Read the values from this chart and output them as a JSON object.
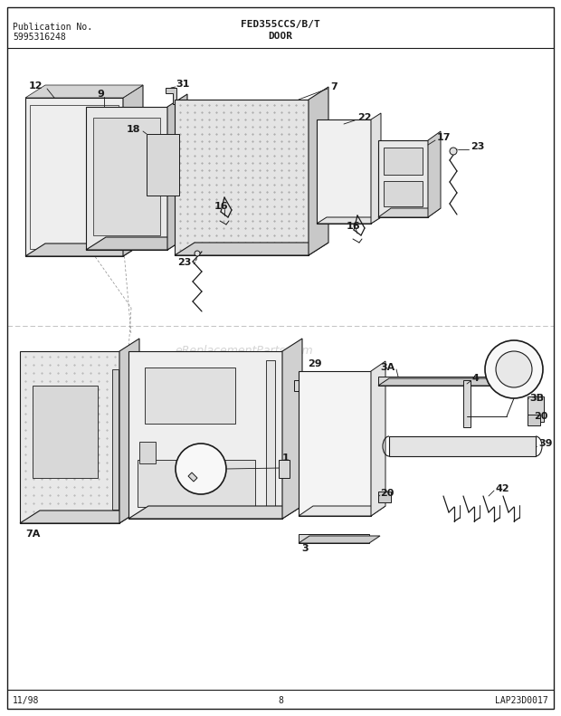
{
  "title_left_1": "Publication No.",
  "title_left_2": "5995316248",
  "title_center_1": "FED355CCS/B/T",
  "title_center_2": "DOOR",
  "footer_left": "11/98",
  "footer_center": "8",
  "footer_right": "LAP23D0017",
  "watermark": "eReplacementParts.com",
  "bg": "#ffffff",
  "lc": "#1a1a1a"
}
